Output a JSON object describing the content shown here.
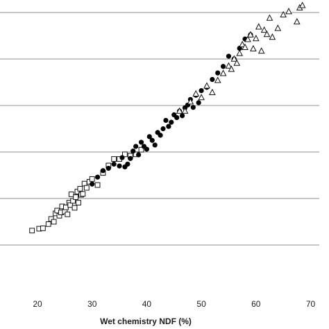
{
  "chart_data": {
    "type": "scatter",
    "xlabel": "Wet chemistry NDF (%)",
    "ylabel": "",
    "xlim": [
      10,
      70
    ],
    "ylim": [
      0,
      70
    ],
    "x_ticks": [
      20,
      30,
      40,
      50,
      60,
      70
    ],
    "x_tick_labels": [
      "20",
      "30",
      "40",
      "50",
      "60",
      "70"
    ],
    "y_gridlines": [
      10,
      20,
      30,
      40,
      50,
      60,
      70
    ],
    "grid": "horizontal",
    "series": [
      {
        "marker": "square-open",
        "points": [
          [
            19.0,
            13.1
          ],
          [
            20.3,
            13.5
          ],
          [
            21.0,
            13.6
          ],
          [
            22.0,
            14.5
          ],
          [
            22.5,
            15.6
          ],
          [
            23.0,
            15.0
          ],
          [
            23.3,
            16.8
          ],
          [
            23.6,
            17.4
          ],
          [
            24.0,
            16.3
          ],
          [
            24.3,
            17.0
          ],
          [
            24.5,
            18.3
          ],
          [
            25.0,
            17.2
          ],
          [
            25.2,
            18.1
          ],
          [
            25.5,
            16.6
          ],
          [
            25.8,
            19.1
          ],
          [
            26.0,
            18.6
          ],
          [
            26.2,
            20.9
          ],
          [
            26.5,
            19.5
          ],
          [
            26.8,
            18.0
          ],
          [
            27.0,
            20.3
          ],
          [
            27.3,
            21.5
          ],
          [
            27.5,
            19.1
          ],
          [
            27.8,
            22.1
          ],
          [
            28.0,
            20.8
          ],
          [
            28.3,
            21.0
          ],
          [
            28.6,
            23.2
          ],
          [
            29.0,
            22.3
          ],
          [
            29.5,
            23.6
          ],
          [
            30.0,
            24.2
          ],
          [
            31.0,
            22.9
          ],
          [
            32.0,
            25.5
          ],
          [
            33.0,
            27.1
          ],
          [
            34.0,
            28.5
          ],
          [
            35.0,
            28.5
          ],
          [
            36.0,
            29.5
          ],
          [
            37.0,
            29.2
          ],
          [
            38.0,
            29.5
          ],
          [
            39.0,
            30.5
          ]
        ]
      },
      {
        "marker": "circle-filled",
        "points": [
          [
            30.0,
            23.1
          ],
          [
            31.0,
            24.6
          ],
          [
            32.0,
            26.0
          ],
          [
            33.0,
            26.5
          ],
          [
            34.0,
            27.4
          ],
          [
            35.0,
            27.0
          ],
          [
            35.5,
            28.8
          ],
          [
            36.0,
            26.8
          ],
          [
            36.5,
            27.4
          ],
          [
            37.0,
            28.6
          ],
          [
            37.5,
            30.2
          ],
          [
            38.0,
            31.2
          ],
          [
            38.5,
            29.4
          ],
          [
            39.0,
            32.1
          ],
          [
            39.5,
            31.2
          ],
          [
            40.0,
            30.6
          ],
          [
            40.5,
            33.3
          ],
          [
            41.0,
            32.5
          ],
          [
            41.5,
            31.5
          ],
          [
            42.0,
            34.2
          ],
          [
            42.5,
            33.6
          ],
          [
            43.0,
            35.0
          ],
          [
            43.5,
            36.8
          ],
          [
            44.0,
            35.5
          ],
          [
            44.5,
            36.4
          ],
          [
            45.0,
            38.0
          ],
          [
            45.5,
            37.4
          ],
          [
            46.0,
            38.8
          ],
          [
            46.5,
            37.8
          ],
          [
            47.0,
            39.5
          ],
          [
            47.5,
            40.1
          ],
          [
            48.0,
            41.3
          ],
          [
            48.5,
            39.6
          ],
          [
            49.0,
            42.2
          ],
          [
            49.5,
            40.6
          ],
          [
            50.0,
            43.2
          ],
          [
            51.0,
            43.9
          ],
          [
            52.0,
            45.6
          ],
          [
            53.0,
            47.0
          ],
          [
            54.0,
            48.4
          ],
          [
            55.0,
            50.6
          ],
          [
            56.0,
            50.0
          ],
          [
            57.0,
            52.3
          ],
          [
            58.0,
            54.3
          ],
          [
            59.0,
            55.2
          ]
        ]
      },
      {
        "marker": "triangle-open",
        "points": [
          [
            46.0,
            38.8
          ],
          [
            47.0,
            38.8
          ],
          [
            48.0,
            40.8
          ],
          [
            49.0,
            42.5
          ],
          [
            50.0,
            41.7
          ],
          [
            51.0,
            44.2
          ],
          [
            52.0,
            42.8
          ],
          [
            53.0,
            45.4
          ],
          [
            54.0,
            46.9
          ],
          [
            55.0,
            48.5
          ],
          [
            55.5,
            47.8
          ],
          [
            56.0,
            50.0
          ],
          [
            56.5,
            49.1
          ],
          [
            57.0,
            51.2
          ],
          [
            57.5,
            53.1
          ],
          [
            58.0,
            52.5
          ],
          [
            58.5,
            54.2
          ],
          [
            59.0,
            55.2
          ],
          [
            59.5,
            52.2
          ],
          [
            60.0,
            54.4
          ],
          [
            60.5,
            56.9
          ],
          [
            61.0,
            51.7
          ],
          [
            61.5,
            56.2
          ],
          [
            62.0,
            55.3
          ],
          [
            62.5,
            58.8
          ],
          [
            63.0,
            54.7
          ],
          [
            64.0,
            56.6
          ],
          [
            65.0,
            59.5
          ],
          [
            66.0,
            60.2
          ],
          [
            67.5,
            58.0
          ],
          [
            68.0,
            61.0
          ],
          [
            68.5,
            61.5
          ]
        ]
      }
    ]
  }
}
